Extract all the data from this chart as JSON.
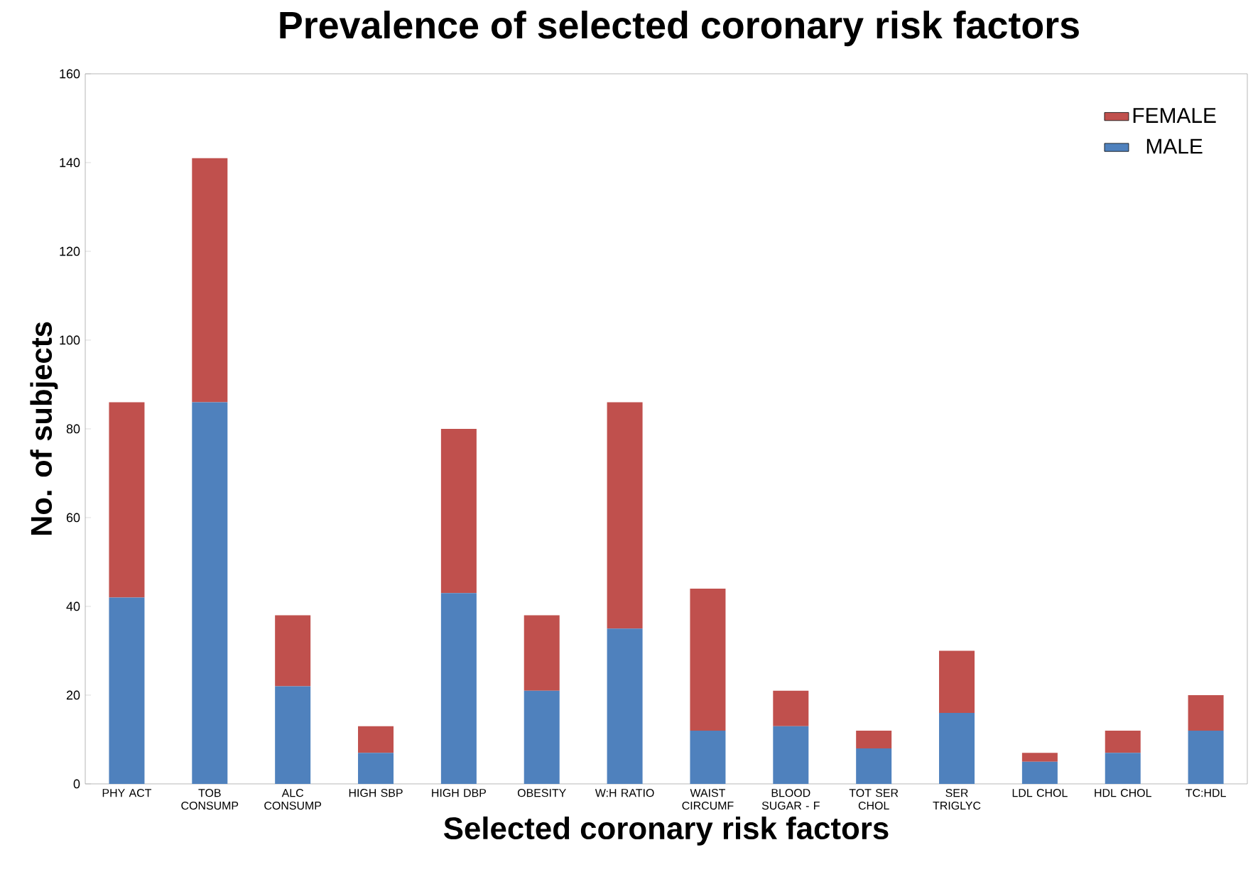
{
  "chart_data": {
    "type": "bar",
    "stacked": true,
    "title": "Prevalence of selected coronary risk factors",
    "xlabel": "Selected coronary risk factors",
    "ylabel": "No. of subjects",
    "categories": [
      "PHY ACT",
      "TOB CONSUMP",
      "ALC CONSUMP",
      "HIGH SBP",
      "HIGH DBP",
      "OBESITY",
      "W:H RATIO",
      "WAIST CIRCUMF",
      "BLOOD SUGAR - F",
      "TOT SER CHOL",
      "SER TRIGLYC",
      "LDL CHOL",
      "HDL CHOL",
      "TC:HDL"
    ],
    "series": [
      {
        "name": "MALE",
        "color": "#4f81bd",
        "values": [
          42,
          86,
          22,
          7,
          43,
          21,
          35,
          12,
          13,
          8,
          16,
          5,
          7,
          12
        ]
      },
      {
        "name": "FEMALE",
        "color": "#c0504d",
        "values": [
          44,
          55,
          16,
          6,
          37,
          17,
          51,
          32,
          8,
          4,
          14,
          2,
          5,
          8
        ]
      }
    ],
    "ylim": [
      0,
      160
    ],
    "yticks": [
      0,
      20,
      40,
      60,
      80,
      100,
      120,
      140,
      160
    ],
    "grid": false,
    "legend": "top right"
  }
}
